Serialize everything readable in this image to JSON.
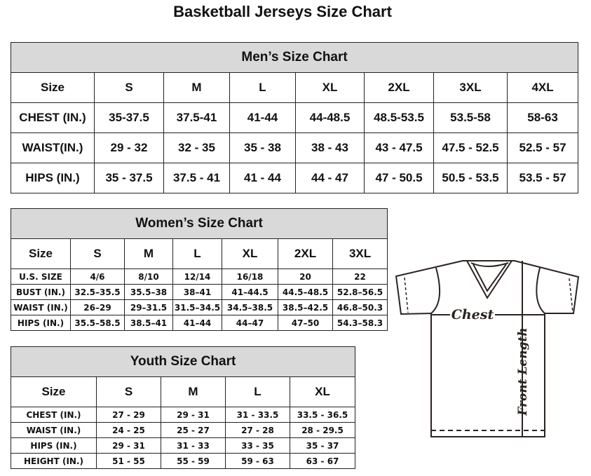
{
  "title": "Basketball Jerseys Size Chart",
  "men": {
    "title": "Men’s Size Chart",
    "header": [
      "Size",
      "S",
      "M",
      "L",
      "XL",
      "2XL",
      "3XL",
      "4XL"
    ],
    "rows": [
      [
        "CHEST (IN.)",
        "35-37.5",
        "37.5-41",
        "41-44",
        "44-48.5",
        "48.5-53.5",
        "53.5-58",
        "58-63"
      ],
      [
        "WAIST(IN.)",
        "29 - 32",
        "32 - 35",
        "35 - 38",
        "38 - 43",
        "43 - 47.5",
        "47.5 - 52.5",
        "52.5 - 57"
      ],
      [
        "HIPS (IN.)",
        "35 - 37.5",
        "37.5 - 41",
        "41 - 44",
        "44 - 47",
        "47 - 50.5",
        "50.5 - 53.5",
        "53.5 - 57"
      ]
    ]
  },
  "women": {
    "title": "Women’s Size Chart",
    "header": [
      "Size",
      "S",
      "M",
      "L",
      "XL",
      "2XL",
      "3XL"
    ],
    "rows": [
      [
        "U.S. SIZE",
        "4/6",
        "8/10",
        "12/14",
        "16/18",
        "20",
        "22"
      ],
      [
        "BUST (IN.)",
        "32.5–35.5",
        "35.5–38",
        "38–41",
        "41–44.5",
        "44.5–48.5",
        "52.8–56.5"
      ],
      [
        "WAIST (IN.)",
        "26–29",
        "29–31.5",
        "31.5–34.5",
        "34.5–38.5",
        "38.5–42.5",
        "46.8–50.3"
      ],
      [
        "HIPS (IN.)",
        "35.5–58.5",
        "38.5–41",
        "41–44",
        "44–47",
        "47–50",
        "54.3–58.3"
      ]
    ]
  },
  "youth": {
    "title": "Youth Size Chart",
    "header": [
      "Size",
      "S",
      "M",
      "L",
      "XL"
    ],
    "rows": [
      [
        "CHEST (IN.)",
        "27 - 29",
        "29 - 31",
        "31 - 33.5",
        "33.5 - 36.5"
      ],
      [
        "WAIST (IN.)",
        "24 - 25",
        "25 - 27",
        "27 - 28",
        "28 - 29.5"
      ],
      [
        "HIPS (IN.)",
        "29 - 31",
        "31 - 33",
        "33 - 35",
        "35 - 37"
      ],
      [
        "HEIGHT (IN.)",
        "51 - 55",
        "55 - 59",
        "59 - 63",
        "63 - 67"
      ]
    ]
  },
  "diagram": {
    "chest_label": "Chest",
    "length_label": "Front Length"
  }
}
